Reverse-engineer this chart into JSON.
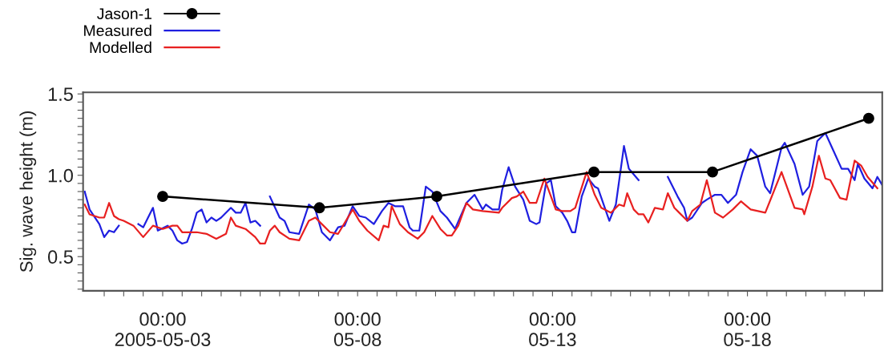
{
  "chart_data": {
    "type": "line",
    "ylabel": "Sig. wave height (m)",
    "xlim": [
      "2005-04-30T23:00",
      "2005-05-21T11:00"
    ],
    "xticks": [
      {
        "value": "2005-05-01T12:00",
        "label": null
      },
      {
        "value": "2005-05-02T00:00",
        "label": null
      },
      {
        "value": "2005-05-02T12:00",
        "label": null
      },
      {
        "value": "2005-05-03T00:00",
        "label": "00:00\n2005-05-03"
      },
      {
        "value": "2005-05-03T12:00",
        "label": null
      },
      {
        "value": "2005-05-04T00:00",
        "label": null
      },
      {
        "value": "2005-05-04T12:00",
        "label": null
      },
      {
        "value": "2005-05-05T00:00",
        "label": null
      },
      {
        "value": "2005-05-05T12:00",
        "label": null
      },
      {
        "value": "2005-05-06T00:00",
        "label": null
      },
      {
        "value": "2005-05-06T12:00",
        "label": null
      },
      {
        "value": "2005-05-07T00:00",
        "label": null
      },
      {
        "value": "2005-05-07T12:00",
        "label": null
      },
      {
        "value": "2005-05-08T00:00",
        "label": "00:00\n05-08"
      },
      {
        "value": "2005-05-08T12:00",
        "label": null
      },
      {
        "value": "2005-05-09T00:00",
        "label": null
      },
      {
        "value": "2005-05-09T12:00",
        "label": null
      },
      {
        "value": "2005-05-10T00:00",
        "label": null
      },
      {
        "value": "2005-05-10T12:00",
        "label": null
      },
      {
        "value": "2005-05-11T00:00",
        "label": null
      },
      {
        "value": "2005-05-11T12:00",
        "label": null
      },
      {
        "value": "2005-05-12T00:00",
        "label": null
      },
      {
        "value": "2005-05-12T12:00",
        "label": null
      },
      {
        "value": "2005-05-13T00:00",
        "label": "00:00\n05-13"
      },
      {
        "value": "2005-05-13T12:00",
        "label": null
      },
      {
        "value": "2005-05-14T00:00",
        "label": null
      },
      {
        "value": "2005-05-14T12:00",
        "label": null
      },
      {
        "value": "2005-05-15T00:00",
        "label": null
      },
      {
        "value": "2005-05-15T12:00",
        "label": null
      },
      {
        "value": "2005-05-16T00:00",
        "label": null
      },
      {
        "value": "2005-05-16T12:00",
        "label": null
      },
      {
        "value": "2005-05-17T00:00",
        "label": null
      },
      {
        "value": "2005-05-17T12:00",
        "label": null
      },
      {
        "value": "2005-05-18T00:00",
        "label": "00:00\n05-18"
      },
      {
        "value": "2005-05-18T12:00",
        "label": null
      },
      {
        "value": "2005-05-19T00:00",
        "label": null
      },
      {
        "value": "2005-05-19T12:00",
        "label": null
      },
      {
        "value": "2005-05-20T00:00",
        "label": null
      },
      {
        "value": "2005-05-20T12:00",
        "label": null
      },
      {
        "value": "2005-05-21T00:00",
        "label": null
      }
    ],
    "ylim": [
      0.29,
      1.51
    ],
    "yticks": [
      {
        "value": 0.3,
        "label": null
      },
      {
        "value": 0.35,
        "label": null
      },
      {
        "value": 0.4,
        "label": null
      },
      {
        "value": 0.45,
        "label": null
      },
      {
        "value": 0.5,
        "label": "0.5"
      },
      {
        "value": 0.55,
        "label": null
      },
      {
        "value": 0.6,
        "label": null
      },
      {
        "value": 0.65,
        "label": null
      },
      {
        "value": 0.7,
        "label": null
      },
      {
        "value": 0.75,
        "label": null
      },
      {
        "value": 0.8,
        "label": null
      },
      {
        "value": 0.85,
        "label": null
      },
      {
        "value": 0.9,
        "label": null
      },
      {
        "value": 0.95,
        "label": null
      },
      {
        "value": 1.0,
        "label": "1.0"
      },
      {
        "value": 1.05,
        "label": null
      },
      {
        "value": 1.1,
        "label": null
      },
      {
        "value": 1.15,
        "label": null
      },
      {
        "value": 1.2,
        "label": null
      },
      {
        "value": 1.25,
        "label": null
      },
      {
        "value": 1.3,
        "label": null
      },
      {
        "value": 1.35,
        "label": null
      },
      {
        "value": 1.4,
        "label": null
      },
      {
        "value": 1.45,
        "label": null
      },
      {
        "value": 1.5,
        "label": "1.5"
      }
    ],
    "tick_labels": "xy",
    "grid": false,
    "legend": "top left",
    "line_style": "solid",
    "series": [
      {
        "name": "Jason-1",
        "color": "#000000",
        "marker": "circle",
        "x": [
          "2005-05-03T00:00",
          "2005-05-07T00:30",
          "2005-05-10T00:45",
          "2005-05-14T01:30",
          "2005-05-17T02:30",
          "2005-05-21T02:40"
        ],
        "values": [
          0.87,
          0.8,
          0.87,
          1.02,
          1.02,
          1.35
        ]
      },
      {
        "name": "Measured",
        "color": "#1f1fe0",
        "marker": "none",
        "x": [
          "2005-05-01T00:00",
          "2005-05-01T03:00",
          "2005-05-01T09:00",
          "2005-05-01T12:00",
          "2005-05-01T15:00",
          "2005-05-01T18:00",
          "2005-05-01T21:00",
          "2005-05-02T00:00",
          "2005-05-02T09:00",
          "2005-05-02T12:00",
          "2005-05-02T18:00",
          "2005-05-02T21:00",
          "2005-05-03T03:00",
          "2005-05-03T06:00",
          "2005-05-03T09:00",
          "2005-05-03T12:00",
          "2005-05-03T15:00",
          "2005-05-03T18:00",
          "2005-05-03T21:00",
          "2005-05-04T00:00",
          "2005-05-04T03:00",
          "2005-05-04T06:00",
          "2005-05-04T09:00",
          "2005-05-04T12:00",
          "2005-05-04T18:00",
          "2005-05-04T21:00",
          "2005-05-05T00:00",
          "2005-05-05T03:00",
          "2005-05-05T06:00",
          "2005-05-05T09:00",
          "2005-05-05T12:00",
          "2005-05-05T15:00",
          "2005-05-05T18:00",
          "2005-05-06T00:00",
          "2005-05-06T03:00",
          "2005-05-06T06:00",
          "2005-05-06T12:00",
          "2005-05-06T18:00",
          "2005-05-06T22:00",
          "2005-05-07T02:00",
          "2005-05-07T07:00",
          "2005-05-07T12:00",
          "2005-05-07T16:00",
          "2005-05-07T21:00",
          "2005-05-08T01:00",
          "2005-05-08T05:00",
          "2005-05-08T10:00",
          "2005-05-08T15:00",
          "2005-05-08T19:00",
          "2005-05-08T23:00",
          "2005-05-09T04:00",
          "2005-05-09T08:00",
          "2005-05-09T10:00",
          "2005-05-09T14:00",
          "2005-05-09T18:00",
          "2005-05-09T22:00",
          "2005-05-10T03:00",
          "2005-05-10T07:00",
          "2005-05-10T12:00",
          "2005-05-10T19:00",
          "2005-05-11T00:00",
          "2005-05-11T05:00",
          "2005-05-11T07:00",
          "2005-05-11T11:00",
          "2005-05-11T15:00",
          "2005-05-11T17:00",
          "2005-05-11T21:00",
          "2005-05-12T01:00",
          "2005-05-12T06:00",
          "2005-05-12T10:00",
          "2005-05-12T14:00",
          "2005-05-12T16:00",
          "2005-05-12T20:00",
          "2005-05-12T23:00",
          "2005-05-13T02:00",
          "2005-05-13T06:00",
          "2005-05-13T09:00",
          "2005-05-13T12:00",
          "2005-05-13T14:00",
          "2005-05-13T18:00",
          "2005-05-13T22:00",
          "2005-05-14T02:00",
          "2005-05-14T04:00",
          "2005-05-14T11:00",
          "2005-05-14T15:00",
          "2005-05-14T20:00",
          "2005-05-14T23:00",
          "2005-05-15T05:00",
          "2005-05-15T09:00",
          "2005-05-15T23:00",
          "2005-05-16T05:00",
          "2005-05-16T09:00",
          "2005-05-16T11:00",
          "2005-05-16T14:00",
          "2005-05-16T20:00",
          "2005-05-16T23:00",
          "2005-05-17T04:00",
          "2005-05-17T08:00",
          "2005-05-17T12:00",
          "2005-05-17T17:00",
          "2005-05-17T21:00",
          "2005-05-18T02:00",
          "2005-05-18T06:00",
          "2005-05-18T11:00",
          "2005-05-18T14:00",
          "2005-05-18T21:00",
          "2005-05-18T23:00",
          "2005-05-19T05:00",
          "2005-05-19T10:00",
          "2005-05-19T14:00",
          "2005-05-19T19:00",
          "2005-05-20T00:00",
          "2005-05-20T05:00",
          "2005-05-20T10:00",
          "2005-05-20T14:00",
          "2005-05-20T18:00",
          "2005-05-20T20:00",
          "2005-05-21T00:00",
          "2005-05-21T05:00",
          "2005-05-21T08:00",
          "2005-05-21T11:00"
        ],
        "values": [
          0.9,
          0.79,
          0.7,
          0.62,
          0.66,
          0.65,
          0.69,
          null,
          0.7,
          0.68,
          0.8,
          0.66,
          0.69,
          0.66,
          0.6,
          0.58,
          0.59,
          0.67,
          0.77,
          0.79,
          0.71,
          0.74,
          0.72,
          0.74,
          0.8,
          0.77,
          0.77,
          0.83,
          0.71,
          0.72,
          0.69,
          null,
          0.87,
          0.74,
          0.72,
          0.65,
          0.64,
          0.82,
          0.79,
          0.65,
          0.6,
          0.68,
          0.69,
          0.81,
          0.75,
          0.74,
          0.7,
          0.78,
          0.83,
          0.81,
          0.81,
          0.68,
          0.66,
          0.66,
          0.93,
          0.9,
          0.78,
          0.74,
          0.67,
          0.83,
          0.88,
          0.79,
          0.82,
          0.79,
          0.79,
          0.91,
          1.05,
          0.93,
          0.85,
          0.72,
          0.7,
          0.71,
          0.95,
          0.97,
          0.81,
          0.77,
          0.72,
          0.65,
          0.65,
          0.87,
          0.98,
          0.93,
          0.92,
          0.72,
          0.82,
          1.18,
          1.04,
          0.97,
          null,
          0.99,
          0.87,
          0.8,
          0.72,
          0.74,
          0.83,
          0.85,
          0.88,
          0.88,
          0.83,
          0.88,
          1.02,
          1.16,
          1.12,
          0.93,
          0.89,
          1.17,
          1.2,
          1.07,
          0.88,
          0.93,
          1.21,
          1.26,
          1.15,
          1.04,
          1.04,
          0.97,
          1.07,
          0.98,
          0.92,
          0.99,
          0.94
        ]
      },
      {
        "name": "Modelled",
        "color": "#e82020",
        "marker": "none",
        "x": [
          "2005-05-01T00:00",
          "2005-05-01T03:00",
          "2005-05-01T09:00",
          "2005-05-01T12:00",
          "2005-05-01T15:00",
          "2005-05-01T18:00",
          "2005-05-01T21:00",
          "2005-05-02T00:00",
          "2005-05-02T06:00",
          "2005-05-02T12:00",
          "2005-05-02T18:00",
          "2005-05-03T00:00",
          "2005-05-03T06:00",
          "2005-05-03T09:00",
          "2005-05-03T12:00",
          "2005-05-03T21:00",
          "2005-05-04T03:00",
          "2005-05-04T09:00",
          "2005-05-04T15:00",
          "2005-05-04T18:00",
          "2005-05-04T21:00",
          "2005-05-05T03:00",
          "2005-05-05T09:00",
          "2005-05-05T12:00",
          "2005-05-05T15:00",
          "2005-05-05T18:00",
          "2005-05-05T21:00",
          "2005-05-06T00:00",
          "2005-05-06T06:00",
          "2005-05-06T12:00",
          "2005-05-06T18:00",
          "2005-05-06T22:00",
          "2005-05-07T03:00",
          "2005-05-07T07:00",
          "2005-05-07T12:00",
          "2005-05-07T21:00",
          "2005-05-08T01:00",
          "2005-05-08T06:00",
          "2005-05-08T13:00",
          "2005-05-08T16:00",
          "2005-05-08T19:00",
          "2005-05-08T21:00",
          "2005-05-09T02:00",
          "2005-05-09T07:00",
          "2005-05-09T13:00",
          "2005-05-09T17:00",
          "2005-05-09T22:00",
          "2005-05-10T03:00",
          "2005-05-10T07:00",
          "2005-05-10T10:00",
          "2005-05-10T14:00",
          "2005-05-10T19:00",
          "2005-05-10T23:00",
          "2005-05-11T05:00",
          "2005-05-11T15:00",
          "2005-05-11T17:00",
          "2005-05-11T23:00",
          "2005-05-12T02:00",
          "2005-05-12T06:00",
          "2005-05-12T10:00",
          "2005-05-12T14:00",
          "2005-05-12T19:00",
          "2005-05-13T02:00",
          "2005-05-13T06:00",
          "2005-05-13T11:00",
          "2005-05-13T14:00",
          "2005-05-13T21:00",
          "2005-05-14T02:00",
          "2005-05-14T06:00",
          "2005-05-14T12:00",
          "2005-05-14T17:00",
          "2005-05-14T20:00",
          "2005-05-14T22:00",
          "2005-05-15T02:00",
          "2005-05-15T05:00",
          "2005-05-15T08:00",
          "2005-05-15T11:00",
          "2005-05-15T15:00",
          "2005-05-15T20:00",
          "2005-05-15T23:00",
          "2005-05-16T03:00",
          "2005-05-16T06:00",
          "2005-05-16T11:00",
          "2005-05-16T14:00",
          "2005-05-16T19:00",
          "2005-05-16T23:00",
          "2005-05-17T04:00",
          "2005-05-17T09:00",
          "2005-05-17T15:00",
          "2005-05-17T20:00",
          "2005-05-18T02:00",
          "2005-05-18T11:00",
          "2005-05-18T21:00",
          "2005-05-19T05:00",
          "2005-05-19T10:00",
          "2005-05-19T11:00",
          "2005-05-19T16:00",
          "2005-05-19T20:00",
          "2005-05-20T00:00",
          "2005-05-20T03:00",
          "2005-05-20T09:00",
          "2005-05-20T13:00",
          "2005-05-20T18:00",
          "2005-05-20T22:00",
          "2005-05-21T02:00",
          "2005-05-21T08:00"
        ],
        "values": [
          0.82,
          0.76,
          0.74,
          0.74,
          0.83,
          0.75,
          0.73,
          0.72,
          0.69,
          0.62,
          0.69,
          0.67,
          0.69,
          0.69,
          0.65,
          0.65,
          0.64,
          0.61,
          0.64,
          0.74,
          0.69,
          0.67,
          0.62,
          0.58,
          0.58,
          0.66,
          0.69,
          0.65,
          0.61,
          0.6,
          0.72,
          0.74,
          0.69,
          0.65,
          0.64,
          0.79,
          0.72,
          0.66,
          0.6,
          0.69,
          0.68,
          0.81,
          0.7,
          0.65,
          0.61,
          0.65,
          0.75,
          0.67,
          0.63,
          0.63,
          0.69,
          0.83,
          0.79,
          0.78,
          0.77,
          0.8,
          0.86,
          0.87,
          0.9,
          0.83,
          0.83,
          0.98,
          0.79,
          0.78,
          0.78,
          0.8,
          1.02,
          0.88,
          0.8,
          0.77,
          0.82,
          0.81,
          0.89,
          0.79,
          0.76,
          0.76,
          0.71,
          0.8,
          0.79,
          0.89,
          0.8,
          0.77,
          0.72,
          0.78,
          0.82,
          0.97,
          0.77,
          0.74,
          0.79,
          0.84,
          0.79,
          0.77,
          1.02,
          0.8,
          0.79,
          0.76,
          0.93,
          1.12,
          0.98,
          0.97,
          0.86,
          0.85,
          1.09,
          1.06,
          0.99,
          0.92
        ]
      }
    ]
  }
}
